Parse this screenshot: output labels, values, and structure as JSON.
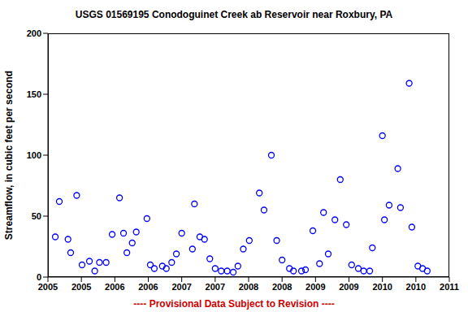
{
  "chart_data": {
    "type": "scatter",
    "title": "USGS 01569195 Conodoguinet Creek ab Reservoir near Roxbury, PA",
    "y_label": "Streamflow, in cubic feet per second",
    "annotation": "---- Provisional Data Subject to Revision ----",
    "x": [
      2005.11,
      2005.17,
      2005.3,
      2005.34,
      2005.43,
      2005.51,
      2005.62,
      2005.7,
      2005.77,
      2005.87,
      2005.96,
      2006.07,
      2006.13,
      2006.18,
      2006.26,
      2006.32,
      2006.48,
      2006.53,
      2006.59,
      2006.71,
      2006.77,
      2006.85,
      2006.92,
      2007.0,
      2007.16,
      2007.19,
      2007.27,
      2007.34,
      2007.42,
      2007.5,
      2007.59,
      2007.68,
      2007.77,
      2007.84,
      2007.92,
      2008.01,
      2008.16,
      2008.23,
      2008.34,
      2008.42,
      2008.5,
      2008.61,
      2008.67,
      2008.79,
      2008.85,
      2008.96,
      2009.06,
      2009.12,
      2009.19,
      2009.29,
      2009.37,
      2009.46,
      2009.54,
      2009.64,
      2009.72,
      2009.81,
      2009.85,
      2010.0,
      2010.03,
      2010.1,
      2010.23,
      2010.27,
      2010.4,
      2010.44,
      2010.53,
      2010.6,
      2010.67
    ],
    "values": [
      33,
      62,
      31,
      20,
      67,
      10,
      13,
      5,
      12,
      12,
      35,
      65,
      36,
      20,
      28,
      37,
      48,
      10,
      7,
      9,
      7,
      12,
      19,
      36,
      23,
      60,
      33,
      31,
      15,
      7,
      5,
      5,
      4,
      9,
      23,
      30,
      69,
      55,
      100,
      30,
      14,
      7,
      5,
      5,
      6,
      38,
      11,
      53,
      19,
      47,
      80,
      43,
      10,
      7,
      5,
      5,
      24,
      116,
      47,
      59,
      89,
      57,
      159,
      41,
      9,
      7,
      5
    ],
    "color": "#0000ff",
    "marker": "circle",
    "xlim": [
      2005,
      2011
    ],
    "xticks": [
      2005,
      {
        "value": 2005.5,
        "label": "2005"
      },
      2006,
      {
        "value": 2006.5,
        "label": "2006"
      },
      2007,
      {
        "value": 2007.5,
        "label": "2007"
      },
      2008,
      {
        "value": 2008.5,
        "label": "2008"
      },
      2009,
      {
        "value": 2009.5,
        "label": "2009"
      },
      2010,
      {
        "value": 2010.5,
        "label": "2010"
      },
      2011
    ],
    "ylim": [
      0,
      200
    ],
    "yticks": [
      0,
      50,
      100,
      150,
      200
    ],
    "grid": false
  }
}
